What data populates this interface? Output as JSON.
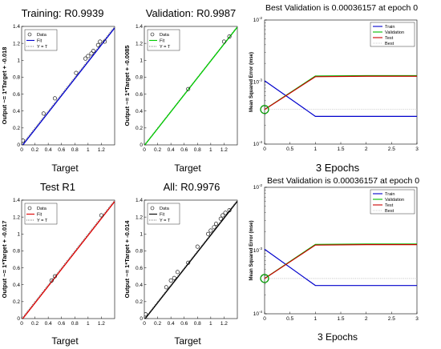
{
  "chart_data": [
    {
      "id": "training",
      "type": "scatter",
      "title": "Training: R0.9939",
      "xlabel": "Target",
      "ylabel": "Output ~= 1*Target + -0.018",
      "xlim": [
        0,
        1.4
      ],
      "ylim": [
        0,
        1.4
      ],
      "xticks": [
        "0",
        "0.2",
        "0.4",
        "0.6",
        "0.8",
        "1",
        "1.2"
      ],
      "yticks": [
        "0",
        "0.2",
        "0.4",
        "0.6",
        "0.8",
        "1",
        "1.2",
        "1.4"
      ],
      "fit_color": "#0000cc",
      "legend": [
        "Data",
        "Fit",
        "Y = T"
      ],
      "fit_line": [
        [
          0,
          -0.018
        ],
        [
          1.4,
          1.382
        ]
      ],
      "points": [
        [
          0.02,
          0.05
        ],
        [
          0.04,
          -0.02
        ],
        [
          0.33,
          0.37
        ],
        [
          0.5,
          0.55
        ],
        [
          0.82,
          0.85
        ],
        [
          0.96,
          1.02
        ],
        [
          1.0,
          1.05
        ],
        [
          1.05,
          1.08
        ],
        [
          1.08,
          1.11
        ],
        [
          1.15,
          1.18
        ],
        [
          1.18,
          1.22
        ],
        [
          1.25,
          1.22
        ]
      ]
    },
    {
      "id": "validation",
      "type": "scatter",
      "title": "Validation: R0.9987",
      "xlabel": "Target",
      "ylabel": "Output ~= 1*Target + -0.0085",
      "xlim": [
        0,
        1.4
      ],
      "ylim": [
        0,
        1.4
      ],
      "xticks": [
        "0",
        "0.2",
        "0.4",
        "0.6",
        "0.8",
        "1",
        "1.2"
      ],
      "yticks": [
        "0",
        "0.2",
        "0.4",
        "0.6",
        "0.8",
        "1",
        "1.2",
        "1.4"
      ],
      "fit_color": "#00cc00",
      "legend": [
        "Data",
        "Fit",
        "Y = T"
      ],
      "fit_line": [
        [
          0,
          -0.0085
        ],
        [
          1.4,
          1.3915
        ]
      ],
      "points": [
        [
          0.66,
          0.66
        ],
        [
          1.2,
          1.22
        ],
        [
          1.28,
          1.28
        ]
      ]
    },
    {
      "id": "test",
      "type": "scatter",
      "title": "Test R1",
      "xlabel": "Target",
      "ylabel": "Output ~= 1*Target + -0.017",
      "xlim": [
        0,
        1.4
      ],
      "ylim": [
        0,
        1.4
      ],
      "xticks": [
        "0",
        "0.2",
        "0.4",
        "0.6",
        "0.8",
        "1",
        "1.2"
      ],
      "yticks": [
        "0",
        "0.2",
        "0.4",
        "0.6",
        "0.8",
        "1",
        "1.2",
        "1.4"
      ],
      "fit_color": "#dd0000",
      "legend": [
        "Data",
        "Fit",
        "Y = T"
      ],
      "fit_line": [
        [
          0,
          -0.017
        ],
        [
          1.4,
          1.383
        ]
      ],
      "points": [
        [
          0.45,
          0.45
        ],
        [
          0.5,
          0.5
        ],
        [
          1.2,
          1.22
        ]
      ]
    },
    {
      "id": "all",
      "type": "scatter",
      "title": "All: R0.9976",
      "xlabel": "Target",
      "ylabel": "Output ~= 1*Target + -0.014",
      "xlim": [
        0,
        1.4
      ],
      "ylim": [
        0,
        1.4
      ],
      "xticks": [
        "0",
        "0.2",
        "0.4",
        "0.6",
        "0.8",
        "1",
        "1.2"
      ],
      "yticks": [
        "0",
        "0.2",
        "0.4",
        "0.6",
        "0.8",
        "1",
        "1.2",
        "1.4"
      ],
      "fit_color": "#000000",
      "legend": [
        "Data",
        "Fit",
        "Y = T"
      ],
      "fit_line": [
        [
          0,
          -0.014
        ],
        [
          1.4,
          1.386
        ]
      ],
      "points": [
        [
          0.02,
          0.05
        ],
        [
          0.05,
          -0.02
        ],
        [
          0.33,
          0.37
        ],
        [
          0.4,
          0.45
        ],
        [
          0.45,
          0.48
        ],
        [
          0.5,
          0.55
        ],
        [
          0.66,
          0.66
        ],
        [
          0.8,
          0.85
        ],
        [
          0.96,
          1.0
        ],
        [
          1.0,
          1.04
        ],
        [
          1.05,
          1.08
        ],
        [
          1.08,
          1.12
        ],
        [
          1.15,
          1.18
        ],
        [
          1.18,
          1.22
        ],
        [
          1.22,
          1.25
        ],
        [
          1.28,
          1.28
        ]
      ]
    },
    {
      "id": "perf_top",
      "type": "line",
      "title": "Best Validation is 0.00036157 at epoch 0",
      "xlabel": "3 Epochs",
      "ylabel": "Mean Squared Error  (mse)",
      "scale_y": "log",
      "xlim": [
        0,
        3
      ],
      "ylim_exp": [
        -4,
        -2
      ],
      "xticks": [
        "0",
        "0.5",
        "1",
        "1.5",
        "2",
        "2.5",
        "3"
      ],
      "yticks": [
        {
          "base": "10",
          "exp": "-4",
          "e": -4
        },
        {
          "base": "10",
          "exp": "-3",
          "e": -3
        },
        {
          "base": "10",
          "exp": "-2",
          "e": -2
        }
      ],
      "legend": [
        "Train",
        "Validation",
        "Test",
        "Best"
      ],
      "x": [
        0,
        1,
        2,
        3
      ],
      "series": [
        {
          "name": "Train",
          "color": "#0000cc",
          "values": [
            0.00105,
            0.00028,
            0.00028,
            0.00028
          ]
        },
        {
          "name": "Validation",
          "color": "#00bb00",
          "values": [
            0.00036157,
            0.00125,
            0.00127,
            0.00127
          ]
        },
        {
          "name": "Test",
          "color": "#cc0000",
          "values": [
            0.00036,
            0.00122,
            0.00124,
            0.00124
          ]
        }
      ],
      "best": {
        "epoch": 0,
        "value": 0.00036157
      },
      "best_marker_color": "#009900"
    },
    {
      "id": "perf_bottom",
      "type": "line",
      "title": "Best Validation is 0.00036157 at epoch 0",
      "xlabel": "3 Epochs",
      "ylabel": "Mean Squared Error  (mse)",
      "scale_y": "log",
      "xlim": [
        0,
        3
      ],
      "ylim_exp": [
        -4,
        -2
      ],
      "xticks": [
        "0",
        "0.5",
        "1",
        "1.5",
        "2",
        "2.5",
        "3"
      ],
      "yticks": [
        {
          "base": "10",
          "exp": "-4",
          "e": -4
        },
        {
          "base": "10",
          "exp": "-3",
          "e": -3
        },
        {
          "base": "10",
          "exp": "-2",
          "e": -2
        }
      ],
      "legend": [
        "Train",
        "Validation",
        "Test",
        "Best"
      ],
      "x": [
        0,
        1,
        2,
        3
      ],
      "series": [
        {
          "name": "Train",
          "color": "#0000cc",
          "values": [
            0.00105,
            0.00028,
            0.00028,
            0.00028
          ]
        },
        {
          "name": "Validation",
          "color": "#00bb00",
          "values": [
            0.00036157,
            0.00125,
            0.00127,
            0.00127
          ]
        },
        {
          "name": "Test",
          "color": "#cc0000",
          "values": [
            0.00036,
            0.00122,
            0.00124,
            0.00124
          ]
        }
      ],
      "best": {
        "epoch": 0,
        "value": 0.00036157
      },
      "best_marker_color": "#009900"
    }
  ]
}
